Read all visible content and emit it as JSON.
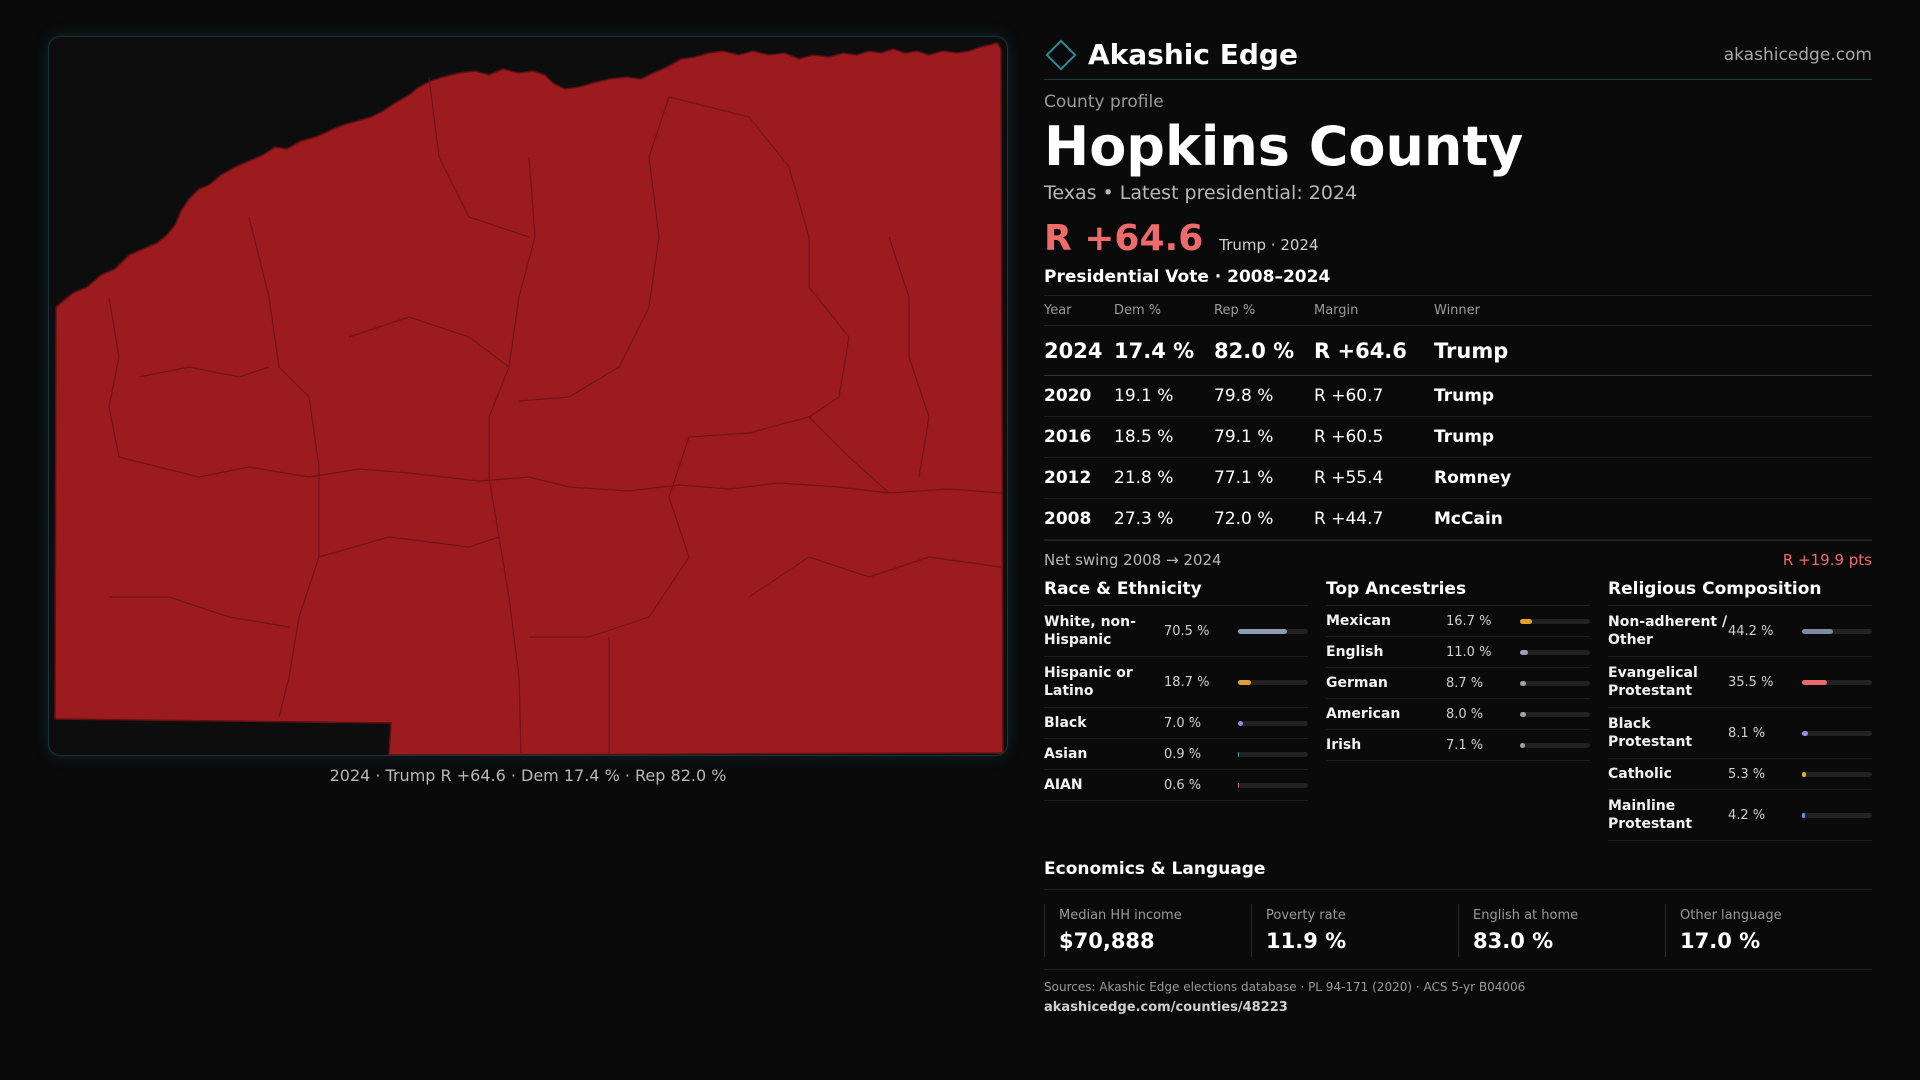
{
  "brand": {
    "name": "Akashic Edge",
    "url": "akashicedge.com"
  },
  "profile": {
    "kicker": "County profile",
    "county": "Hopkins County",
    "subtitle": "Texas • Latest presidential: 2024",
    "margin": "R +64.6",
    "margin_note": "Trump · 2024"
  },
  "map": {
    "caption": "2024 · Trump R +64.6 · Dem 17.4 % · Rep 82.0 %",
    "fill_color": "#9b1b1e"
  },
  "votes": {
    "title": "Presidential Vote · 2008–2024",
    "headers": {
      "year": "Year",
      "dem": "Dem %",
      "rep": "Rep %",
      "margin": "Margin",
      "winner": "Winner"
    },
    "rows": [
      {
        "year": "2024",
        "dem": "17.4 %",
        "rep": "82.0 %",
        "margin": "R +64.6",
        "winner": "Trump"
      },
      {
        "year": "2020",
        "dem": "19.1 %",
        "rep": "79.8 %",
        "margin": "R +60.7",
        "winner": "Trump"
      },
      {
        "year": "2016",
        "dem": "18.5 %",
        "rep": "79.1 %",
        "margin": "R +60.5",
        "winner": "Trump"
      },
      {
        "year": "2012",
        "dem": "21.8 %",
        "rep": "77.1 %",
        "margin": "R +55.4",
        "winner": "Romney"
      },
      {
        "year": "2008",
        "dem": "27.3 %",
        "rep": "72.0 %",
        "margin": "R +44.7",
        "winner": "McCain"
      }
    ],
    "swing_label": "Net swing 2008 → 2024",
    "swing_value": "R +19.9 pts"
  },
  "race": {
    "title": "Race & Ethnicity",
    "items": [
      {
        "label": "White, non-Hispanic",
        "pct": "70.5 %",
        "value": 70.5,
        "color": "#8e9bb0"
      },
      {
        "label": "Hispanic or Latino",
        "pct": "18.7 %",
        "value": 18.7,
        "color": "#e0a030"
      },
      {
        "label": "Black",
        "pct": "7.0 %",
        "value": 7.0,
        "color": "#8f8fe8"
      },
      {
        "label": "Asian",
        "pct": "0.9 %",
        "value": 0.9,
        "color": "#5aa0a8"
      },
      {
        "label": "AIAN",
        "pct": "0.6 %",
        "value": 0.6,
        "color": "#c87050"
      }
    ]
  },
  "ancestry": {
    "title": "Top Ancestries",
    "items": [
      {
        "label": "Mexican",
        "pct": "16.7 %",
        "value": 16.7,
        "color": "#e0a030"
      },
      {
        "label": "English",
        "pct": "11.0 %",
        "value": 11.0,
        "color": "#9aa3b0"
      },
      {
        "label": "German",
        "pct": "8.7 %",
        "value": 8.7,
        "color": "#9aa3b0"
      },
      {
        "label": "American",
        "pct": "8.0 %",
        "value": 8.0,
        "color": "#9aa3b0"
      },
      {
        "label": "Irish",
        "pct": "7.1 %",
        "value": 7.1,
        "color": "#9aa3b0"
      }
    ]
  },
  "religion": {
    "title": "Religious Composition",
    "items": [
      {
        "label": "Non-adherent / Other",
        "pct": "44.2 %",
        "value": 44.2,
        "color": "#7f8aa0"
      },
      {
        "label": "Evangelical Protestant",
        "pct": "35.5 %",
        "value": 35.5,
        "color": "#e86a6a"
      },
      {
        "label": "Black Protestant",
        "pct": "8.1 %",
        "value": 8.1,
        "color": "#8f8fe8"
      },
      {
        "label": "Catholic",
        "pct": "5.3 %",
        "value": 5.3,
        "color": "#e0b030"
      },
      {
        "label": "Mainline Protestant",
        "pct": "4.2 %",
        "value": 4.2,
        "color": "#6a90e8"
      }
    ]
  },
  "economics": {
    "title": "Economics & Language",
    "cells": [
      {
        "label": "Median HH income",
        "value": "$70,888"
      },
      {
        "label": "Poverty rate",
        "value": "11.9 %"
      },
      {
        "label": "English at home",
        "value": "83.0 %"
      },
      {
        "label": "Other language",
        "value": "17.0 %"
      }
    ]
  },
  "sources": {
    "line": "Sources: Akashic Edge elections database · PL 94-171 (2020) · ACS 5-yr B04006",
    "url": "akashicedge.com/counties/48223"
  }
}
